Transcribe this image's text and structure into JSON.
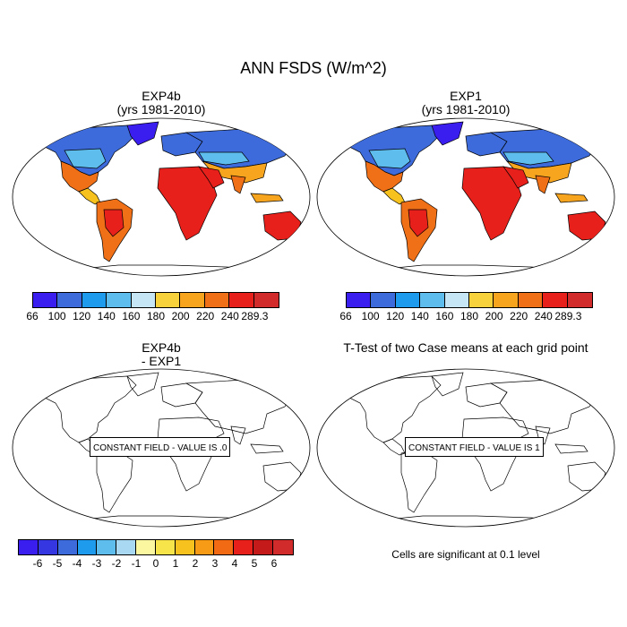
{
  "figure": {
    "title": "ANN FSDS (W/m^2)"
  },
  "panels": [
    {
      "id": "top-left",
      "title_line1": "EXP4b",
      "title_line2": "(yrs 1981-2010)"
    },
    {
      "id": "top-right",
      "title_line1": "EXP1",
      "title_line2": "(yrs 1981-2010)"
    },
    {
      "id": "bottom-left",
      "title_line1": "EXP4b",
      "title_line2": "- EXP1",
      "field_label": "CONSTANT FIELD - VALUE IS .0"
    },
    {
      "id": "bottom-right",
      "title_line1": "T-Test of two Case means at each grid point",
      "field_label": "CONSTANT FIELD - VALUE IS 1",
      "note": "Cells are significant at 0.1 level"
    }
  ],
  "colorbars": {
    "fsds": {
      "labels": [
        "66",
        "100",
        "120",
        "140",
        "160",
        "180",
        "200",
        "220",
        "240",
        "289.3"
      ],
      "colors": [
        "#3a1ef0",
        "#3d6bdb",
        "#1f9bee",
        "#5fbdee",
        "#c7e6f5",
        "#f7d23c",
        "#f7a51e",
        "#f07018",
        "#e8201b",
        "#d22b2b"
      ]
    },
    "diff": {
      "labels": [
        "-6",
        "-5",
        "-4",
        "-3",
        "-2",
        "-1",
        "0",
        "1",
        "2",
        "3",
        "4",
        "5",
        "6"
      ],
      "colors": [
        "#3a1ef0",
        "#3537e0",
        "#3d6bdb",
        "#1f9bee",
        "#5fbdee",
        "#a9d9f2",
        "#fbf7a0",
        "#f7e34a",
        "#f7c21e",
        "#f79a16",
        "#f36a15",
        "#e8201b",
        "#c51a1a",
        "#d22b2b"
      ]
    }
  },
  "colors": {
    "cold": "#3a1ef0",
    "cool": "#5fbdee",
    "mild": "#f7c21e",
    "warm": "#f07018",
    "hot": "#e8201b"
  }
}
